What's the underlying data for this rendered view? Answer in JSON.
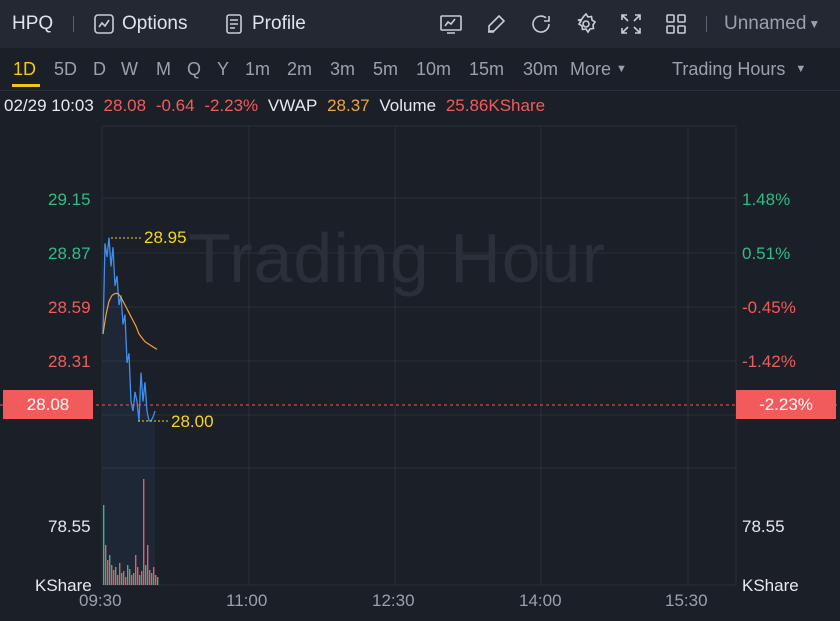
{
  "toolbar": {
    "symbol": "HPQ",
    "options_label": "Options",
    "profile_label": "Profile",
    "layout_label": "Unnamed",
    "icons": [
      "chart-indicator-icon",
      "draw-icon",
      "refresh-icon",
      "settings-icon",
      "fullscreen-icon",
      "grid-layout-icon"
    ]
  },
  "tabs": {
    "items": [
      "1D",
      "5D",
      "D",
      "W",
      "M",
      "Q",
      "Y",
      "1m",
      "2m",
      "3m",
      "5m",
      "10m",
      "15m",
      "30m"
    ],
    "active": "1D",
    "more_label": "More",
    "session_label": "Trading Hours"
  },
  "info": {
    "datetime": "02/29 10:03",
    "price": "28.08",
    "change": "-0.64",
    "change_pct": "-2.23%",
    "vwap_label": "VWAP",
    "vwap_value": "28.37",
    "volume_label": "Volume",
    "volume_value": "25.86KShare"
  },
  "watermark": "Trading Hour",
  "chart_data": {
    "type": "line",
    "price_axis": [
      "29.15",
      "28.87",
      "28.59",
      "28.31"
    ],
    "pct_axis": [
      "1.48%",
      "0.51%",
      "-0.45%",
      "-1.42%"
    ],
    "current_price": "28.08",
    "current_pct": "-2.23%",
    "high_label": "28.95",
    "low_label": "28.00",
    "volume_axis_value": "78.55",
    "volume_unit": "KShare",
    "time_labels": [
      "09:30",
      "11:00",
      "12:30",
      "14:00",
      "15:30"
    ],
    "price_series": [
      28.45,
      28.92,
      28.85,
      28.95,
      28.8,
      28.9,
      28.7,
      28.75,
      28.6,
      28.65,
      28.5,
      28.55,
      28.3,
      28.35,
      28.1,
      28.05,
      28.15,
      28.1,
      28.0,
      28.25,
      28.1,
      28.2,
      28.05,
      28.0,
      28.0,
      28.02,
      28.05
    ],
    "vwap_series": [
      28.45,
      28.55,
      28.62,
      28.65,
      28.66,
      28.66,
      28.64,
      28.61,
      28.58,
      28.55,
      28.52,
      28.49,
      28.45,
      28.43,
      28.41,
      28.4,
      28.39,
      28.38,
      28.37
    ],
    "colors": {
      "price": "#3d8ef0",
      "vwap": "#f0a33a",
      "up": "#2ebd85",
      "down": "#f25b5b"
    }
  }
}
